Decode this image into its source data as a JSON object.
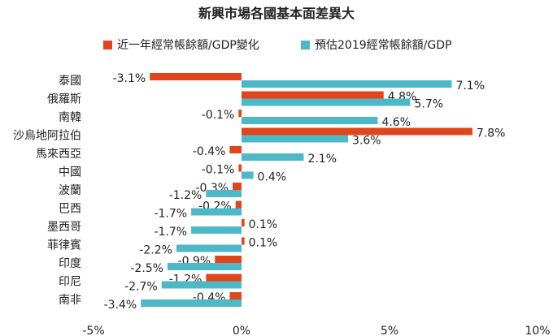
{
  "chart_data": {
    "type": "bar",
    "orientation": "horizontal",
    "title": "新興市場各國基本面差異大",
    "categories": [
      "泰國",
      "俄羅斯",
      "南韓",
      "沙烏地阿拉伯",
      "馬來西亞",
      "中國",
      "波蘭",
      "巴西",
      "墨西哥",
      "菲律賓",
      "印度",
      "印尼",
      "南非"
    ],
    "series": [
      {
        "name": "近一年經常帳餘額/GDP變化",
        "color": "#e2441b",
        "values": [
          -3.1,
          4.8,
          -0.1,
          7.8,
          -0.4,
          -0.1,
          -0.3,
          -0.2,
          0.1,
          0.1,
          -0.9,
          -1.2,
          -0.4
        ],
        "labels": [
          "-3.1%",
          "4.8%",
          "-0.1%",
          "7.8%",
          "-0.4%",
          "-0.1%",
          "-0.3%",
          "-0.2%",
          "0.1%",
          "0.1%",
          "-0.9%",
          "-1.2%",
          "-0.4%"
        ]
      },
      {
        "name": "預估2019經常帳餘額/GDP",
        "color": "#4db8c6",
        "values": [
          7.1,
          5.7,
          4.6,
          3.6,
          2.1,
          0.4,
          -1.2,
          -1.7,
          -1.7,
          -2.2,
          -2.5,
          -2.7,
          -3.4
        ],
        "labels": [
          "7.1%",
          "5.7%",
          "4.6%",
          "3.6%",
          "2.1%",
          "0.4%",
          "-1.2%",
          "-1.7%",
          "-1.7%",
          "-2.2%",
          "-2.5%",
          "-2.7%",
          "-3.4%"
        ]
      }
    ],
    "xlim": [
      -5,
      10
    ],
    "xticks": [
      -5,
      0,
      5,
      10
    ],
    "xtick_labels": [
      "-5%",
      "0%",
      "5%",
      "10%"
    ],
    "grid": false,
    "legend_position": "top"
  }
}
